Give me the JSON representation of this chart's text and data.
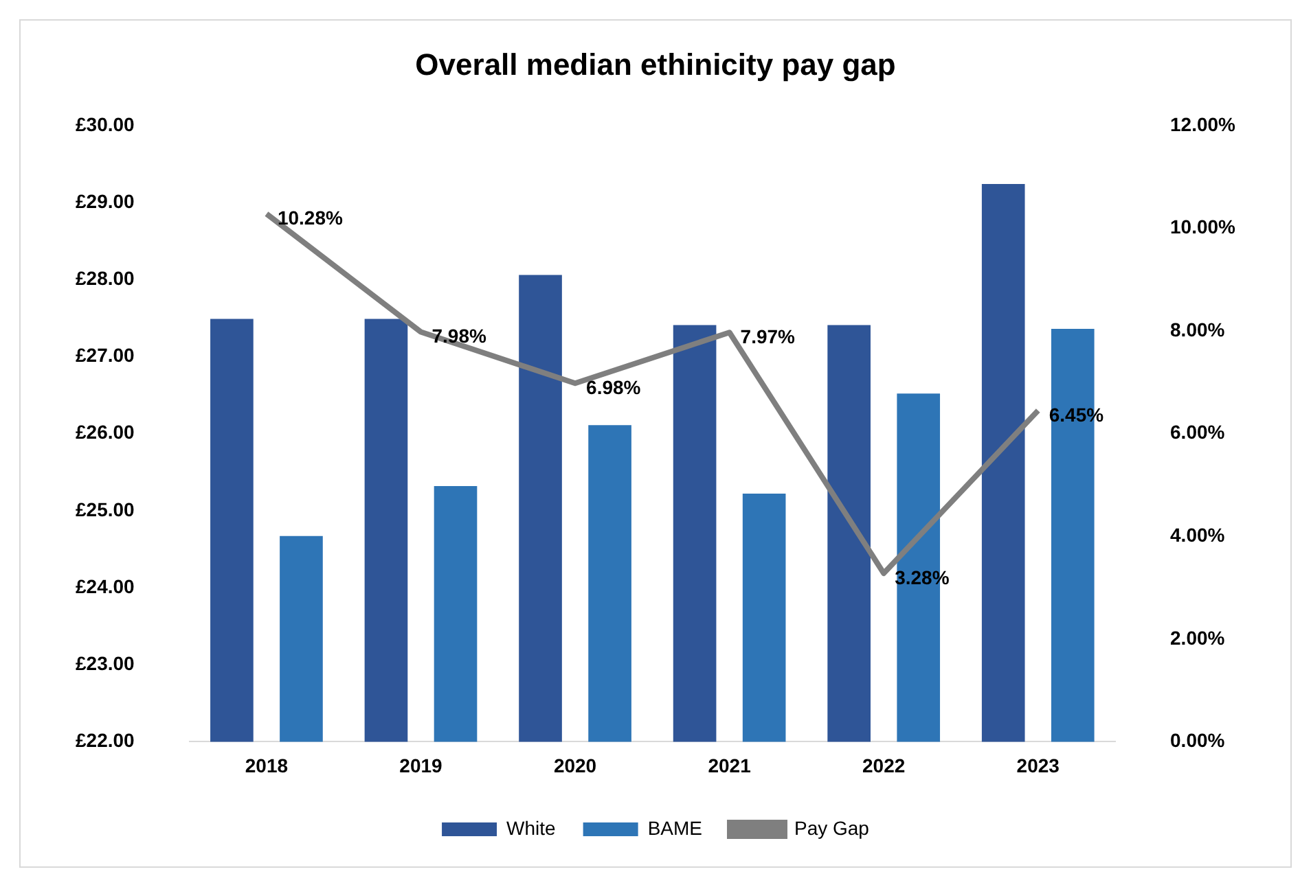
{
  "chart_data": {
    "type": "bar",
    "title": "Overall median ethinicity pay gap",
    "categories": [
      "2018",
      "2019",
      "2020",
      "2021",
      "2022",
      "2023"
    ],
    "series": [
      {
        "name": "White",
        "color": "#2f5597",
        "values": [
          27.49,
          27.49,
          28.06,
          27.41,
          27.41,
          29.24
        ]
      },
      {
        "name": "BAME",
        "color": "#2e75b6",
        "values": [
          24.67,
          25.32,
          26.11,
          25.22,
          26.52,
          27.36
        ]
      },
      {
        "name": "Pay Gap",
        "type": "line",
        "axis": "y2",
        "color": "#7f7f7f",
        "values": [
          10.28,
          7.98,
          6.98,
          7.97,
          3.28,
          6.45
        ],
        "value_labels": [
          "10.28%",
          "7.98%",
          "6.98%",
          "7.97%",
          "3.28%",
          "6.45%"
        ]
      }
    ],
    "ylim": [
      22,
      30
    ],
    "yticks": [
      {
        "value": 22,
        "label": "£22.00"
      },
      {
        "value": 23,
        "label": "£23.00"
      },
      {
        "value": 24,
        "label": "£24.00"
      },
      {
        "value": 25,
        "label": "£25.00"
      },
      {
        "value": 26,
        "label": "£26.00"
      },
      {
        "value": 27,
        "label": "£27.00"
      },
      {
        "value": 28,
        "label": "£28.00"
      },
      {
        "value": 29,
        "label": "£29.00"
      },
      {
        "value": 30,
        "label": "£30.00"
      }
    ],
    "y2lim": [
      0,
      12
    ],
    "y2ticks": [
      {
        "value": 0,
        "label": "0.00%"
      },
      {
        "value": 2,
        "label": "2.00%"
      },
      {
        "value": 4,
        "label": "4.00%"
      },
      {
        "value": 6,
        "label": "6.00%"
      },
      {
        "value": 8,
        "label": "8.00%"
      },
      {
        "value": 10,
        "label": "10.00%"
      },
      {
        "value": 12,
        "label": "12.00%"
      }
    ],
    "grid": false,
    "legend": "bottom",
    "marker": "none",
    "line_style": "solid"
  }
}
